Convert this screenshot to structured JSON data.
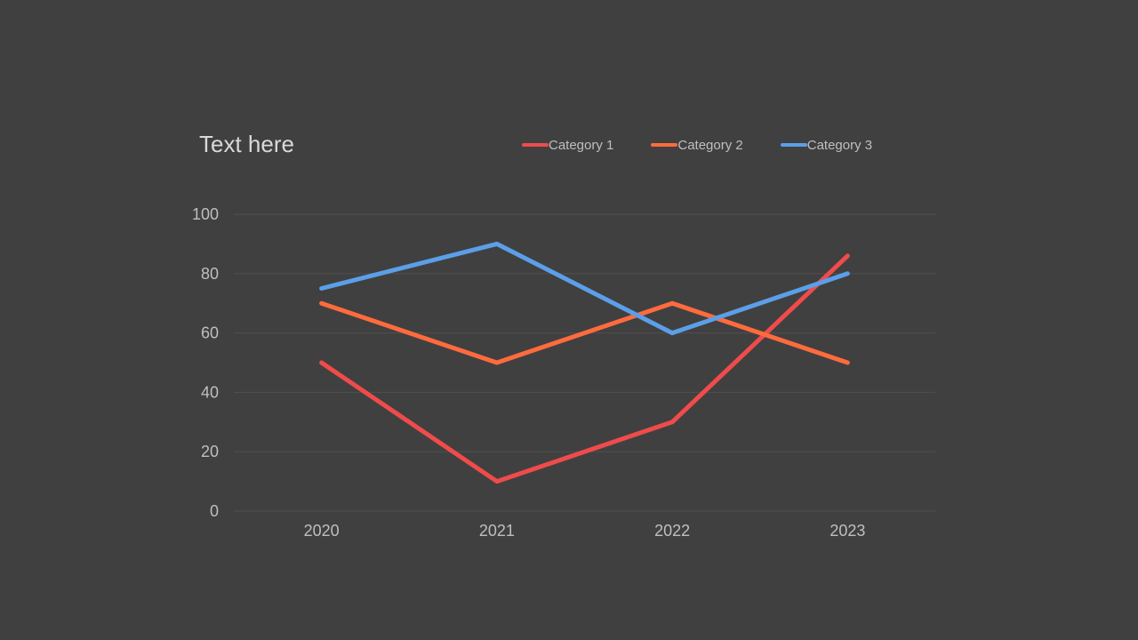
{
  "chart_data": {
    "type": "line",
    "title": "Text here",
    "categories": [
      "2020",
      "2021",
      "2022",
      "2023"
    ],
    "ylim": [
      0,
      100
    ],
    "yticks": [
      0,
      20,
      40,
      60,
      80,
      100
    ],
    "grid": true,
    "legend_position": "top-right",
    "series": [
      {
        "name": "Category 1",
        "color": "#f04b4b",
        "values": [
          50,
          10,
          30,
          86
        ]
      },
      {
        "name": "Category 2",
        "color": "#ff6b3d",
        "values": [
          70,
          50,
          70,
          50
        ]
      },
      {
        "name": "Category 3",
        "color": "#5b9fe8",
        "values": [
          75,
          90,
          60,
          80
        ]
      }
    ]
  }
}
